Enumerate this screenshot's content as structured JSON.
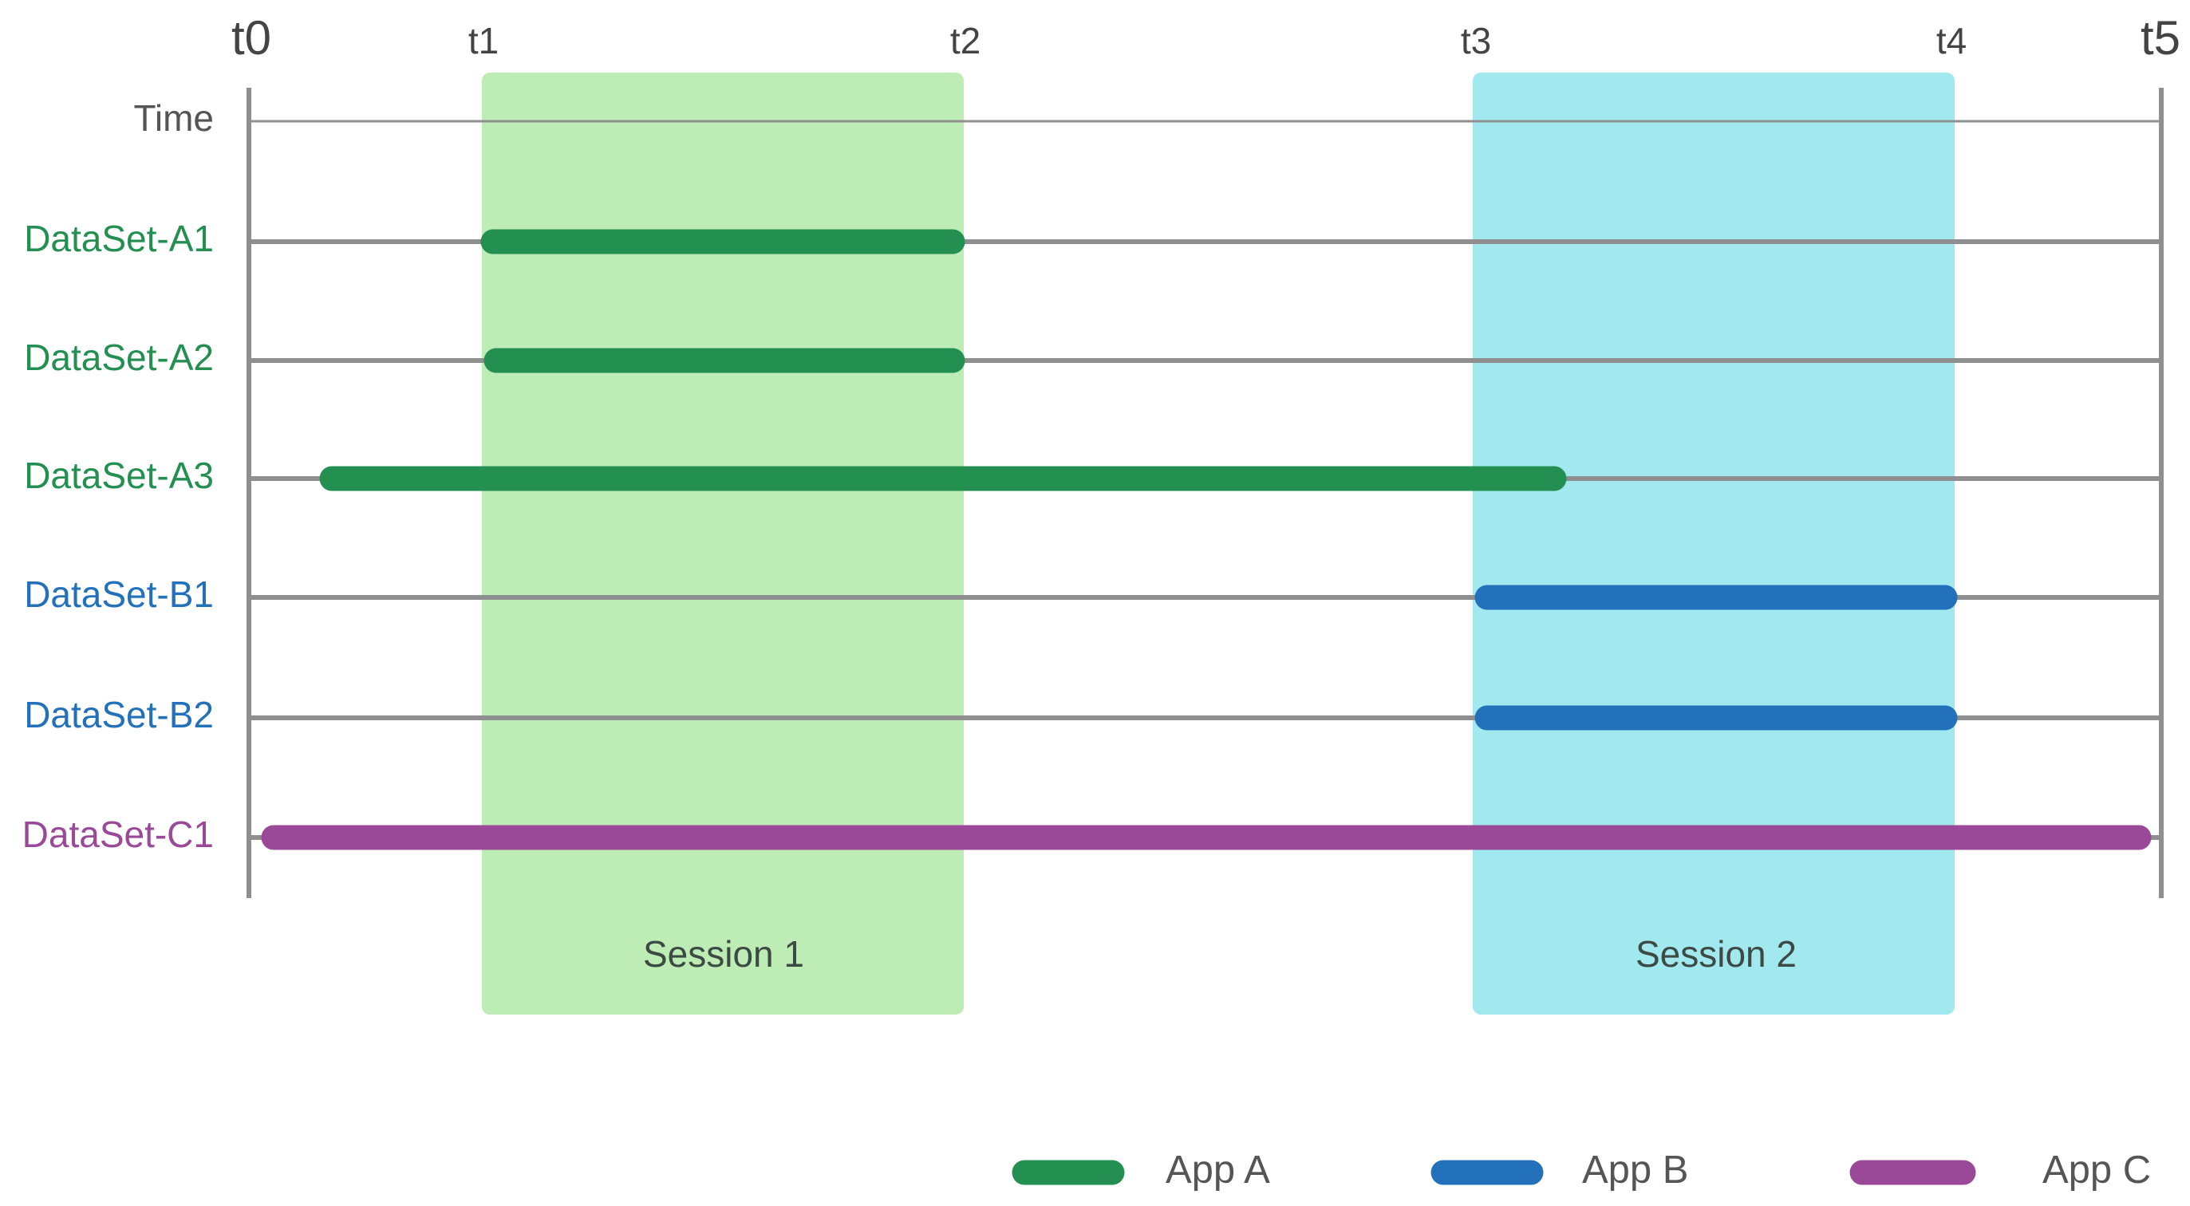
{
  "time_labels": [
    "t0",
    "t1",
    "t2",
    "t3",
    "t4",
    "t5"
  ],
  "rows": [
    "Time",
    "DataSet-A1",
    "DataSet-A2",
    "DataSet-A3",
    "DataSet-B1",
    "DataSet-B2",
    "DataSet-C1"
  ],
  "sessions": [
    "Session 1",
    "Session 2"
  ],
  "legend": [
    "App A",
    "App B",
    "App C"
  ]
}
